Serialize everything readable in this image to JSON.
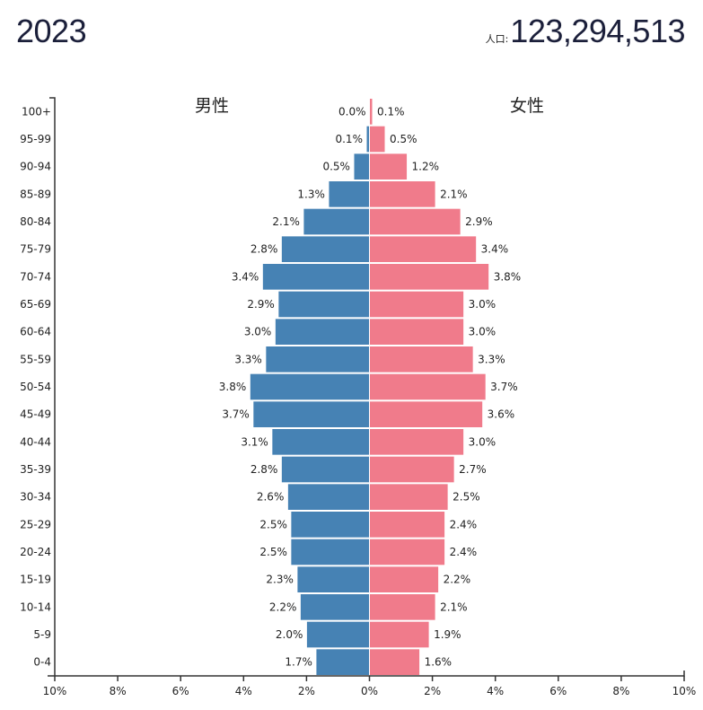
{
  "header": {
    "year": "2023",
    "population_label": "人口:",
    "population_value": "123,294,513"
  },
  "colors": {
    "male": "#4682b4",
    "female": "#f07b8b",
    "axis": "#333333"
  },
  "chart_data": {
    "type": "bar",
    "subtype": "population-pyramid",
    "title": "2023",
    "categories": [
      "100+",
      "95-99",
      "90-94",
      "85-89",
      "80-84",
      "75-79",
      "70-74",
      "65-69",
      "60-64",
      "55-59",
      "50-54",
      "45-49",
      "40-44",
      "35-39",
      "30-34",
      "25-29",
      "20-24",
      "15-19",
      "10-14",
      "5-9",
      "0-4"
    ],
    "series": [
      {
        "name": "男性",
        "side": "left",
        "values": [
          0.0,
          0.1,
          0.5,
          1.3,
          2.1,
          2.8,
          3.4,
          2.9,
          3.0,
          3.3,
          3.8,
          3.7,
          3.1,
          2.8,
          2.6,
          2.5,
          2.5,
          2.3,
          2.2,
          2.0,
          1.7
        ],
        "labels": [
          "0.0%",
          "0.1%",
          "0.5%",
          "1.3%",
          "2.1%",
          "2.8%",
          "3.4%",
          "2.9%",
          "3.0%",
          "3.3%",
          "3.8%",
          "3.7%",
          "3.1%",
          "2.8%",
          "2.6%",
          "2.5%",
          "2.5%",
          "2.3%",
          "2.2%",
          "2.0%",
          "1.7%"
        ]
      },
      {
        "name": "女性",
        "side": "right",
        "values": [
          0.1,
          0.5,
          1.2,
          2.1,
          2.9,
          3.4,
          3.8,
          3.0,
          3.0,
          3.3,
          3.7,
          3.6,
          3.0,
          2.7,
          2.5,
          2.4,
          2.4,
          2.2,
          2.1,
          1.9,
          1.6
        ],
        "labels": [
          "0.1%",
          "0.5%",
          "1.2%",
          "2.1%",
          "2.9%",
          "3.4%",
          "3.8%",
          "3.0%",
          "3.0%",
          "3.3%",
          "3.7%",
          "3.6%",
          "3.0%",
          "2.7%",
          "2.5%",
          "2.4%",
          "2.4%",
          "2.2%",
          "2.1%",
          "1.9%",
          "1.6%"
        ]
      }
    ],
    "xlim": [
      -10,
      10
    ],
    "x_ticks": [
      -10,
      -8,
      -6,
      -4,
      -2,
      0,
      2,
      4,
      6,
      8,
      10
    ],
    "x_tick_labels": [
      "10%",
      "8%",
      "6%",
      "4%",
      "2%",
      "0%",
      "2%",
      "4%",
      "6%",
      "8%",
      "10%"
    ],
    "xlabel": "",
    "ylabel": "",
    "grid": false,
    "legend": "none"
  }
}
